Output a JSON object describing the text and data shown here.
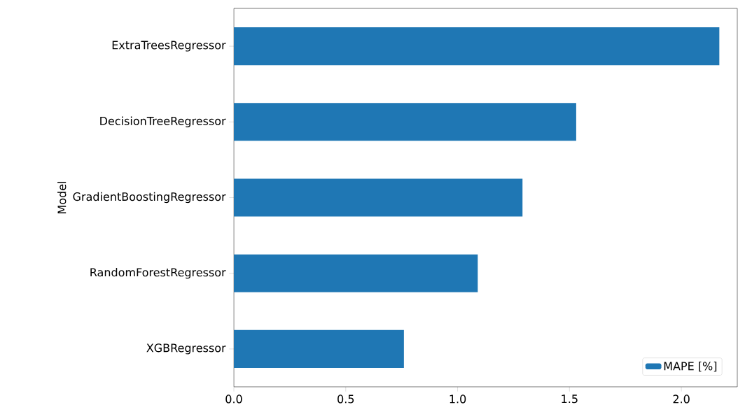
{
  "chart_data": {
    "type": "bar",
    "orientation": "horizontal",
    "ylabel": "Model",
    "categories": [
      "ExtraTreesRegressor",
      "DecisionTreeRegressor",
      "GradientBoostingRegressor",
      "RandomForestRegressor",
      "XGBRegressor"
    ],
    "series": [
      {
        "name": "MAPE [%]",
        "color": "#1f77b4",
        "values": [
          2.17,
          1.53,
          1.29,
          1.09,
          0.76
        ]
      }
    ],
    "xlim": [
      0,
      2.25
    ],
    "xticks": [
      {
        "value": 0,
        "label": "0.0"
      },
      {
        "value": 0.5,
        "label": "0.5"
      },
      {
        "value": 1,
        "label": "1.0"
      },
      {
        "value": 1.5,
        "label": "1.5"
      },
      {
        "value": 2,
        "label": "2.0"
      }
    ],
    "legend": "bottom right"
  }
}
